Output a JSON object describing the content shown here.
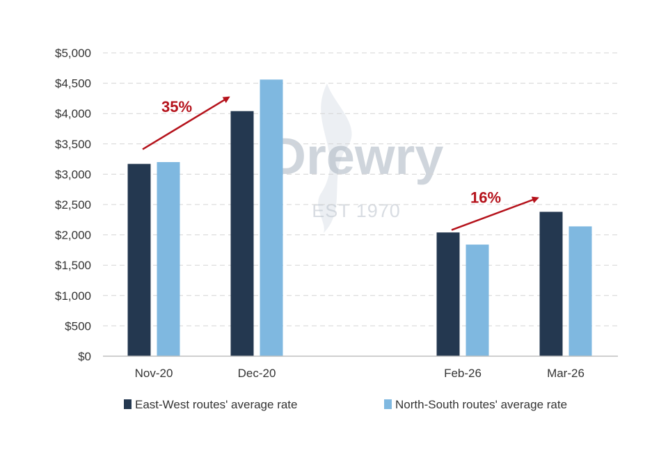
{
  "chart_data": {
    "type": "bar",
    "categories": [
      "Nov-20",
      "Dec-20",
      "Feb-26",
      "Mar-26"
    ],
    "series": [
      {
        "name": "East-West routes' average rate",
        "values": [
          3170,
          4040,
          2040,
          2380
        ],
        "color": "#243850"
      },
      {
        "name": "North-South routes' average rate",
        "values": [
          3200,
          4560,
          1840,
          2140
        ],
        "color": "#7fb8e0"
      }
    ],
    "yticks": [
      "$0",
      "$500",
      "$1,000",
      "$1,500",
      "$2,000",
      "$2,500",
      "$3,000",
      "$3,500",
      "$4,000",
      "$4,500",
      "$5,000"
    ],
    "ylim": [
      0,
      5000
    ],
    "grid": true,
    "legend_position": "bottom",
    "annotations": [
      {
        "label": "35%",
        "from_category": "Nov-20",
        "to_category": "Dec-20",
        "color": "#b5121b"
      },
      {
        "label": "16%",
        "from_category": "Feb-26",
        "to_category": "Mar-26",
        "color": "#b5121b"
      }
    ]
  },
  "watermark": {
    "text": "Drewry",
    "subtext": "EST 1970"
  }
}
